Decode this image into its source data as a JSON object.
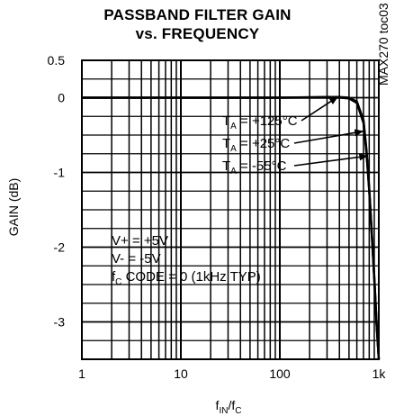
{
  "chart_data": {
    "type": "line",
    "title_lines": [
      "PASSBAND FILTER GAIN",
      "vs. FREQUENCY"
    ],
    "xlabel": {
      "main": "f",
      "sub1": "IN",
      "sep": "/f",
      "sub2": "C"
    },
    "ylabel": "GAIN (dB)",
    "x_scale": "log",
    "xlim": [
      1,
      1000
    ],
    "ylim": [
      -3.5,
      0.5
    ],
    "x_ticks": [
      1,
      10,
      100,
      1000
    ],
    "x_tick_labels": [
      "1",
      "10",
      "100",
      "1k"
    ],
    "y_ticks": [
      0.5,
      0,
      -1,
      -2,
      -3
    ],
    "y_tick_labels": [
      "0.5",
      "0",
      "-1",
      "-2",
      "-3"
    ],
    "grid": true,
    "watermark": "MAX270 toc03",
    "series": [
      {
        "name": "TA = +125°C",
        "x": [
          1,
          10,
          100,
          300,
          400,
          500,
          600,
          700,
          750,
          800,
          850,
          900,
          950,
          1000
        ],
        "y": [
          0,
          0,
          0,
          0.01,
          0.01,
          0,
          -0.05,
          -0.3,
          -0.7,
          -1.2,
          -1.8,
          -2.4,
          -3.0,
          -3.5
        ]
      },
      {
        "name": "TA = +25°C",
        "x": [
          1,
          10,
          100,
          300,
          400,
          500,
          600,
          700,
          750,
          800,
          850,
          900,
          950,
          1000
        ],
        "y": [
          0,
          0,
          0,
          0.005,
          0.005,
          -0.005,
          -0.06,
          -0.32,
          -0.72,
          -1.22,
          -1.82,
          -2.42,
          -3.02,
          -3.5
        ]
      },
      {
        "name": "TA = -55°C",
        "x": [
          1,
          10,
          100,
          300,
          400,
          500,
          600,
          700,
          750,
          800,
          850,
          900,
          950,
          1000
        ],
        "y": [
          0,
          0,
          0,
          0,
          0,
          -0.01,
          -0.07,
          -0.34,
          -0.74,
          -1.24,
          -1.84,
          -2.44,
          -3.04,
          -3.5
        ]
      }
    ],
    "legend_labels": [
      {
        "prefix": "T",
        "sub": "A",
        "value": " = +125°C",
        "arrow_to": {
          "x": 400,
          "y": 0.01
        }
      },
      {
        "prefix": "T",
        "sub": "A",
        "value": " = +25°C",
        "arrow_to": {
          "x": 720,
          "y": -0.45
        }
      },
      {
        "prefix": "T",
        "sub": "A",
        "value": " = -55°C",
        "arrow_to": {
          "x": 800,
          "y": -0.78
        }
      }
    ],
    "conditions": {
      "line1": "V+ = +5V",
      "line2": "V- = -5V",
      "line3_prefix": "f",
      "line3_sub": "C",
      "line3_value": " CODE = 0 (1kHz TYP)"
    }
  }
}
